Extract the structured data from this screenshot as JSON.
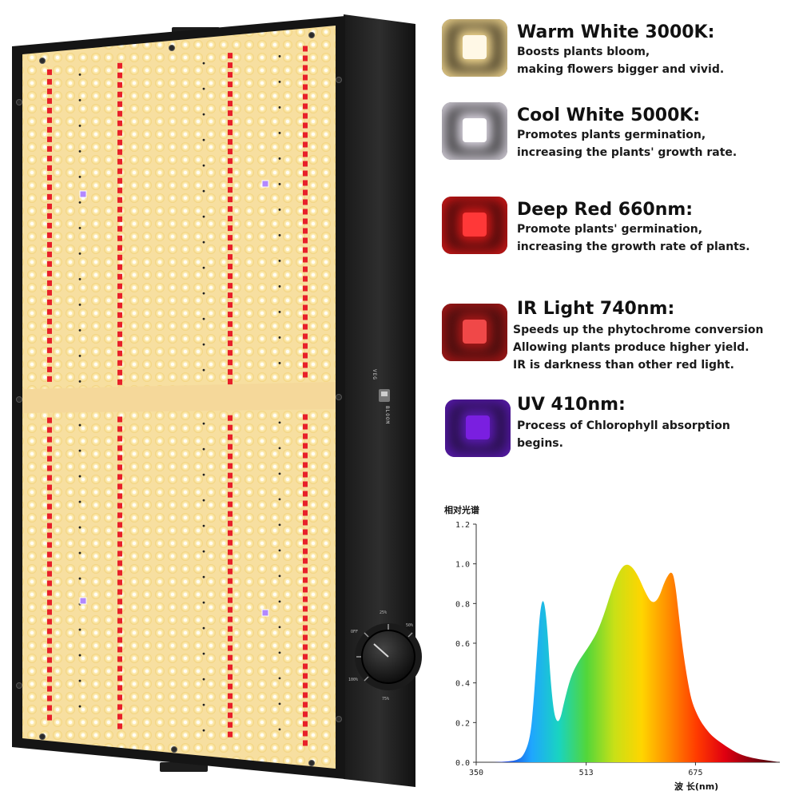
{
  "panel": {
    "switch": {
      "label_top": "VEG",
      "label_bottom": "BLOOM"
    },
    "dial": {
      "ticks": [
        "OFF",
        "25%",
        "50%",
        "75%",
        "100%"
      ]
    }
  },
  "legend": [
    {
      "title": "Warm White 3000K:",
      "lines": [
        "Boosts plants bloom,",
        "making flowers bigger and vivid."
      ],
      "colors": {
        "frame": "#2a2417",
        "glow": "#f3d890",
        "core": "#fff8e6"
      }
    },
    {
      "title": "Cool White 5000K:",
      "lines": [
        "Promotes plants germination,",
        "increasing the plants' growth rate."
      ],
      "colors": {
        "frame": "#222222",
        "glow": "#d9d4df",
        "core": "#ffffff"
      }
    },
    {
      "title": "Deep Red 660nm:",
      "lines": [
        "Promote plants' germination,",
        "increasing the growth rate of plants."
      ],
      "colors": {
        "frame": "#2a0a0a",
        "glow": "#d01818",
        "core": "#ff3838"
      }
    },
    {
      "title": "IR Light 740nm:",
      "lines": [
        "Speeds up the phytochrome conversion",
        "Allowing plants produce higher yield.",
        "IR is darkness than other red light."
      ],
      "colors": {
        "frame": "#2a0c0c",
        "glow": "#a81818",
        "core": "#f04848"
      }
    },
    {
      "title": "UV 410nm:",
      "lines": [
        "Process of Chlorophyll absorption",
        "begins."
      ],
      "colors": {
        "frame": "#1c1030",
        "glow": "#5a1ab0",
        "core": "#7a1fe0"
      }
    }
  ],
  "chart_data": {
    "type": "area",
    "title": "相对光谱",
    "xlabel": "波 长(nm)",
    "ylabel": "",
    "xlim": [
      350,
      800
    ],
    "ylim": [
      0,
      1.2
    ],
    "x_ticks": [
      350,
      513,
      675
    ],
    "y_ticks": [
      "0.0",
      "0.2",
      "0.4",
      "0.6",
      "0.8",
      "1.0",
      "1.2"
    ],
    "grid": false,
    "x": [
      350,
      380,
      400,
      410,
      420,
      430,
      435,
      440,
      445,
      450,
      455,
      460,
      465,
      470,
      475,
      480,
      490,
      500,
      510,
      520,
      530,
      540,
      550,
      560,
      570,
      580,
      590,
      600,
      610,
      620,
      630,
      640,
      645,
      650,
      655,
      660,
      665,
      670,
      680,
      690,
      700,
      720,
      740,
      760,
      780,
      800
    ],
    "values": [
      0.0,
      0.0,
      0.005,
      0.01,
      0.03,
      0.12,
      0.3,
      0.55,
      0.78,
      0.83,
      0.7,
      0.42,
      0.25,
      0.2,
      0.22,
      0.3,
      0.43,
      0.5,
      0.55,
      0.6,
      0.66,
      0.75,
      0.86,
      0.95,
      1.0,
      0.99,
      0.94,
      0.86,
      0.8,
      0.82,
      0.92,
      0.97,
      0.9,
      0.75,
      0.6,
      0.48,
      0.38,
      0.3,
      0.22,
      0.17,
      0.13,
      0.08,
      0.04,
      0.02,
      0.01,
      0.0
    ],
    "gradient": [
      "#1a0a6a",
      "#1a3ad8",
      "#1fa6ff",
      "#19d4c0",
      "#52d63a",
      "#c8e017",
      "#ffd500",
      "#ff8a00",
      "#ff3a00",
      "#e00010",
      "#8a0010",
      "#3a0008"
    ]
  }
}
